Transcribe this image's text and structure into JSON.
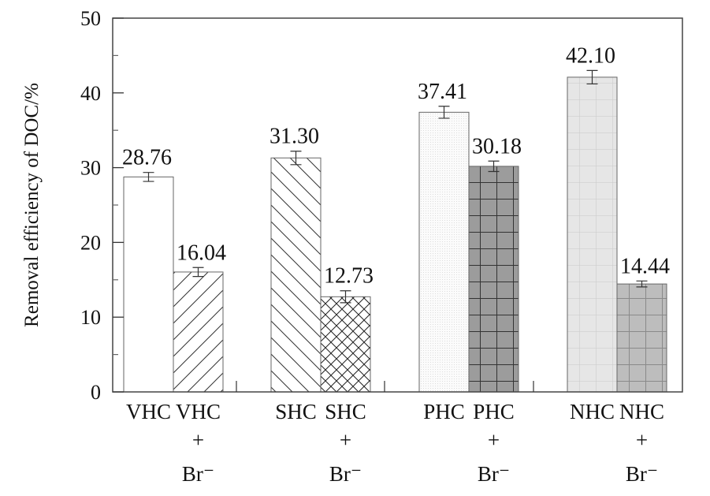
{
  "chart_data": {
    "type": "bar",
    "title": "",
    "xlabel": "",
    "ylabel": "Removal efficiency of DOC/%",
    "ylim": [
      0,
      50
    ],
    "yticks": [
      "0",
      "10",
      "20",
      "30",
      "40",
      "50"
    ],
    "grid": false,
    "bars": [
      {
        "group": 0,
        "label": "VHC",
        "label2": "",
        "label3": "",
        "value": 28.76,
        "value_label": "28.76",
        "error": 0.6,
        "pattern": "white"
      },
      {
        "group": 0,
        "label": "VHC",
        "label2": "+",
        "label3": "Br⁻",
        "value": 16.04,
        "value_label": "16.04",
        "error": 0.6,
        "pattern": "fwd-diag"
      },
      {
        "group": 1,
        "label": "SHC",
        "label2": "",
        "label3": "",
        "value": 31.3,
        "value_label": "31.30",
        "error": 0.9,
        "pattern": "back-diag"
      },
      {
        "group": 1,
        "label": "SHC",
        "label2": "+",
        "label3": "Br⁻",
        "value": 12.73,
        "value_label": "12.73",
        "error": 0.8,
        "pattern": "crosshatch"
      },
      {
        "group": 2,
        "label": "PHC",
        "label2": "",
        "label3": "",
        "value": 37.41,
        "value_label": "37.41",
        "error": 0.8,
        "pattern": "light-dots"
      },
      {
        "group": 2,
        "label": "PHC",
        "label2": "+",
        "label3": "Br⁻",
        "value": 30.18,
        "value_label": "30.18",
        "error": 0.7,
        "pattern": "dark-grid"
      },
      {
        "group": 3,
        "label": "NHC",
        "label2": "",
        "label3": "",
        "value": 42.1,
        "value_label": "42.10",
        "error": 0.9,
        "pattern": "grey-dots"
      },
      {
        "group": 3,
        "label": "NHC",
        "label2": "+",
        "label3": "Br⁻",
        "value": 14.44,
        "value_label": "14.44",
        "error": 0.4,
        "pattern": "grey-grid"
      }
    ]
  }
}
